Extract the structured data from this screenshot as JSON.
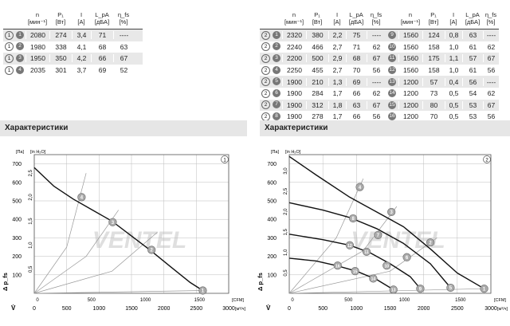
{
  "left_table": {
    "headers": [
      {
        "top": "n",
        "bot": "[мин⁻¹]"
      },
      {
        "top": "P₁",
        "bot": "[Вт]"
      },
      {
        "top": "I",
        "bot": "[A]"
      },
      {
        "top": "L_pA",
        "bot": "[дБА]"
      },
      {
        "top": "η_fs",
        "bot": "[%]"
      }
    ],
    "rows": [
      {
        "curve": "1",
        "voltage_mark": "1",
        "n": "2080",
        "p1": "274",
        "i": "3,4",
        "lpa": "71",
        "eta": "----"
      },
      {
        "curve": "1",
        "voltage_mark": "2",
        "n": "1980",
        "p1": "338",
        "i": "4,1",
        "lpa": "68",
        "eta": "63"
      },
      {
        "curve": "1",
        "voltage_mark": "3",
        "n": "1950",
        "p1": "350",
        "i": "4,2",
        "lpa": "66",
        "eta": "67"
      },
      {
        "curve": "1",
        "voltage_mark": "4",
        "n": "2035",
        "p1": "301",
        "i": "3,7",
        "lpa": "69",
        "eta": "52"
      }
    ]
  },
  "right_table": {
    "headers": [
      {
        "top": "n",
        "bot": "[мин⁻¹]"
      },
      {
        "top": "P₁",
        "bot": "[Вт]"
      },
      {
        "top": "I",
        "bot": "[A]"
      },
      {
        "top": "L_pA",
        "bot": "[дБА]"
      },
      {
        "top": "η_fs",
        "bot": "[%]"
      }
    ],
    "col_a": [
      {
        "curve": "2",
        "mark": "1",
        "n": "2320",
        "p1": "380",
        "i": "2,2",
        "lpa": "75",
        "eta": "----"
      },
      {
        "curve": "2",
        "mark": "2",
        "n": "2240",
        "p1": "466",
        "i": "2,7",
        "lpa": "71",
        "eta": "62"
      },
      {
        "curve": "2",
        "mark": "3",
        "n": "2200",
        "p1": "500",
        "i": "2,9",
        "lpa": "68",
        "eta": "67"
      },
      {
        "curve": "2",
        "mark": "4",
        "n": "2250",
        "p1": "455",
        "i": "2,7",
        "lpa": "70",
        "eta": "56"
      },
      {
        "curve": "2",
        "mark": "5",
        "n": "1900",
        "p1": "210",
        "i": "1,3",
        "lpa": "69",
        "eta": "----"
      },
      {
        "curve": "2",
        "mark": "6",
        "n": "1900",
        "p1": "284",
        "i": "1,7",
        "lpa": "66",
        "eta": "62"
      },
      {
        "curve": "2",
        "mark": "7",
        "n": "1900",
        "p1": "312",
        "i": "1,8",
        "lpa": "63",
        "eta": "67"
      },
      {
        "curve": "2",
        "mark": "8",
        "n": "1900",
        "p1": "278",
        "i": "1,7",
        "lpa": "66",
        "eta": "56"
      }
    ],
    "col_b": [
      {
        "mark": "9",
        "n": "1560",
        "p1": "124",
        "i": "0,8",
        "lpa": "63",
        "eta": "----"
      },
      {
        "mark": "10",
        "n": "1560",
        "p1": "158",
        "i": "1,0",
        "lpa": "61",
        "eta": "62"
      },
      {
        "mark": "11",
        "n": "1560",
        "p1": "175",
        "i": "1,1",
        "lpa": "57",
        "eta": "67"
      },
      {
        "mark": "12",
        "n": "1560",
        "p1": "158",
        "i": "1,0",
        "lpa": "61",
        "eta": "56"
      },
      {
        "mark": "13",
        "n": "1200",
        "p1": "57",
        "i": "0,4",
        "lpa": "56",
        "eta": "----"
      },
      {
        "mark": "14",
        "n": "1200",
        "p1": "73",
        "i": "0,5",
        "lpa": "54",
        "eta": "62"
      },
      {
        "mark": "15",
        "n": "1200",
        "p1": "80",
        "i": "0,5",
        "lpa": "53",
        "eta": "67"
      },
      {
        "mark": "16",
        "n": "1200",
        "p1": "70",
        "i": "0,5",
        "lpa": "53",
        "eta": "56"
      }
    ]
  },
  "section_left_title": "Характеристики",
  "section_right_title": "Характеристики",
  "watermark_text": "VENTEL",
  "colors": {
    "curve": "#111111",
    "system_line": "#999999",
    "grid": "#bdbdbd",
    "marker_fill": "#aaaaaa"
  },
  "chart_data": [
    {
      "type": "line",
      "chart_number": "1",
      "y_unit_left": "[Па]",
      "y_unit_right": "[in H₂O]",
      "x_unit_top": "[CFM]",
      "x_unit_bottom": "[м³/ч]",
      "y_symbol": "Δ p_fs",
      "x_symbol": "V̇",
      "xlim": [
        0,
        3000
      ],
      "ylim": [
        0,
        750
      ],
      "x_ticks": [
        0,
        500,
        1000,
        1500,
        2000,
        2500,
        3000
      ],
      "y_ticks": [
        100,
        200,
        300,
        400,
        500,
        600,
        700
      ],
      "y_ticks_inH2O": [
        "0,5",
        "1,0",
        "1,5",
        "2,0",
        "2,5"
      ],
      "x_ticks_cfm": [
        "0",
        "500",
        "1000",
        "1500"
      ],
      "series": [
        {
          "x": [
            0,
            300,
            600,
            900,
            1200,
            1500,
            1800,
            2100,
            2400,
            2600
          ],
          "y": [
            680,
            580,
            510,
            450,
            390,
            310,
            230,
            145,
            60,
            15
          ]
        }
      ],
      "points": [
        {
          "label": "4",
          "x": 730,
          "y": 520
        },
        {
          "label": "3",
          "x": 1210,
          "y": 385
        },
        {
          "label": "2",
          "x": 1810,
          "y": 235
        },
        {
          "label": "1",
          "x": 2600,
          "y": 15
        }
      ],
      "system_lines": [
        {
          "x": [
            0,
            500,
            800
          ],
          "y": [
            0,
            250,
            650
          ]
        },
        {
          "x": [
            0,
            800,
            1300
          ],
          "y": [
            0,
            200,
            450
          ]
        },
        {
          "x": [
            0,
            1200,
            1900
          ],
          "y": [
            0,
            120,
            330
          ]
        },
        {
          "x": [
            0,
            2600
          ],
          "y": [
            0,
            15
          ]
        }
      ]
    },
    {
      "type": "line",
      "chart_number": "2",
      "y_unit_left": "[Па]",
      "y_unit_right": "[in H₂O]",
      "x_unit_top": "[CFM]",
      "x_unit_bottom": "[м³/ч]",
      "y_symbol": "Δ p_fs",
      "x_symbol": "V̇",
      "xlim": [
        0,
        3000
      ],
      "ylim": [
        0,
        750
      ],
      "x_ticks": [
        0,
        500,
        1000,
        1500,
        2000,
        2500,
        3000
      ],
      "y_ticks": [
        100,
        200,
        300,
        400,
        500,
        600,
        700
      ],
      "y_ticks_inH2O": [
        "0,5",
        "1,0",
        "1,5",
        "2,0",
        "2,5",
        "3,0"
      ],
      "x_ticks_cfm": [
        "0",
        "500",
        "1000",
        "1500"
      ],
      "series": [
        {
          "x": [
            0,
            400,
            900,
            1300,
            1700,
            2100,
            2500,
            2900
          ],
          "y": [
            740,
            640,
            520,
            440,
            360,
            240,
            110,
            25
          ]
        },
        {
          "x": [
            0,
            500,
            900,
            1300,
            1700,
            2100,
            2400
          ],
          "y": [
            490,
            450,
            410,
            350,
            270,
            160,
            30
          ]
        },
        {
          "x": [
            0,
            500,
            900,
            1200,
            1500,
            1800,
            1950
          ],
          "y": [
            320,
            290,
            260,
            220,
            160,
            90,
            25
          ]
        },
        {
          "x": [
            0,
            400,
            700,
            1000,
            1300,
            1550
          ],
          "y": [
            190,
            175,
            150,
            120,
            75,
            20
          ]
        }
      ],
      "points": [
        {
          "label": "4",
          "x": 1050,
          "y": 575
        },
        {
          "label": "3",
          "x": 1520,
          "y": 440
        },
        {
          "label": "2",
          "x": 2100,
          "y": 275
        },
        {
          "label": "1",
          "x": 2900,
          "y": 25
        },
        {
          "label": "8",
          "x": 950,
          "y": 405
        },
        {
          "label": "7",
          "x": 1320,
          "y": 315
        },
        {
          "label": "6",
          "x": 1750,
          "y": 195
        },
        {
          "label": "5",
          "x": 2400,
          "y": 30
        },
        {
          "label": "12",
          "x": 900,
          "y": 260
        },
        {
          "label": "11",
          "x": 1150,
          "y": 225
        },
        {
          "label": "10",
          "x": 1450,
          "y": 150
        },
        {
          "label": "9",
          "x": 1950,
          "y": 25
        },
        {
          "label": "16",
          "x": 720,
          "y": 150
        },
        {
          "label": "15",
          "x": 980,
          "y": 120
        },
        {
          "label": "14",
          "x": 1250,
          "y": 80
        },
        {
          "label": "13",
          "x": 1550,
          "y": 20
        }
      ],
      "system_lines": [
        {
          "x": [
            0,
            700,
            1100
          ],
          "y": [
            0,
            300,
            620
          ]
        },
        {
          "x": [
            0,
            1100,
            1600
          ],
          "y": [
            0,
            230,
            470
          ]
        },
        {
          "x": [
            0,
            1500,
            2200
          ],
          "y": [
            0,
            120,
            300
          ]
        },
        {
          "x": [
            0,
            2900
          ],
          "y": [
            0,
            25
          ]
        }
      ]
    }
  ]
}
